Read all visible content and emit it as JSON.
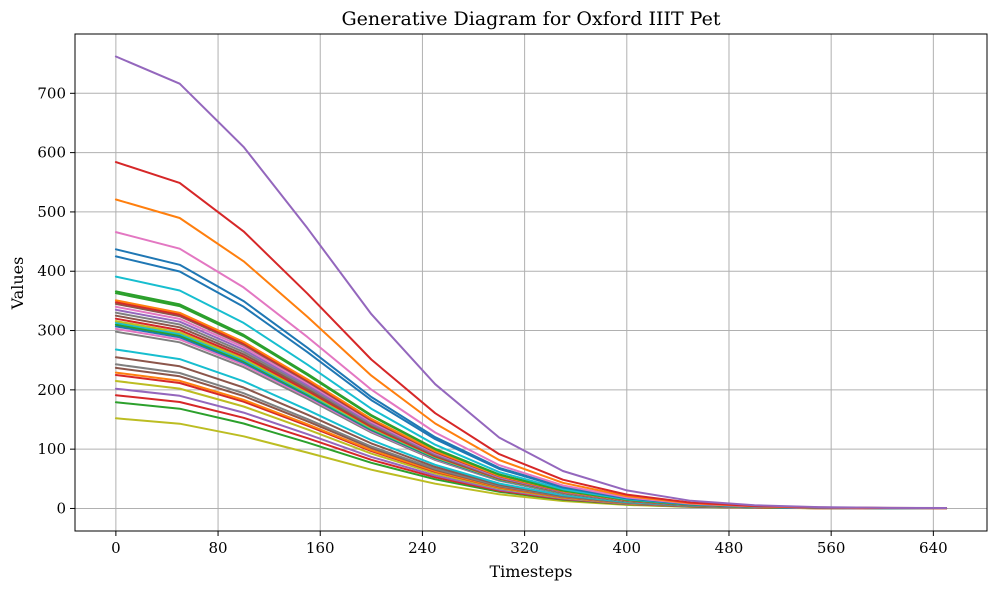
{
  "chart_data": {
    "type": "line",
    "title": "Generative Diagram for Oxford IIIT Pet",
    "xlabel": "Timesteps",
    "ylabel": "Values",
    "xlim": [
      -32,
      682
    ],
    "ylim": [
      -38,
      800
    ],
    "xticks": [
      0,
      80,
      160,
      240,
      320,
      400,
      480,
      560,
      640
    ],
    "yticks": [
      0,
      100,
      200,
      300,
      400,
      500,
      600,
      700
    ],
    "grid": true,
    "x": [
      0,
      50,
      100,
      150,
      200,
      250,
      300,
      350,
      400,
      450,
      500,
      550,
      600,
      650
    ],
    "profile": [
      1,
      0.94,
      0.8,
      0.62,
      0.43,
      0.275,
      0.157,
      0.083,
      0.04,
      0.017,
      0.007,
      0.003,
      0.0015,
      0.001
    ],
    "start_values": [
      762,
      584,
      521,
      466,
      437,
      425,
      391,
      366,
      363,
      351,
      348,
      345,
      340,
      335,
      330,
      325,
      320,
      316,
      313,
      310,
      307,
      303,
      298,
      268,
      255,
      243,
      237,
      229,
      225,
      215,
      202,
      191,
      179,
      152
    ],
    "series_colors": [
      "#9467bd",
      "#d62728",
      "#ff7f0e",
      "#e377c2",
      "#1f77b4",
      "#1f77b4",
      "#17becf",
      "#2ca02c",
      "#2ca02c",
      "#ff7f0e",
      "#d62728",
      "#8c564b",
      "#e377c2",
      "#9467bd",
      "#7f7f7f",
      "#8c564b",
      "#d62728",
      "#bcbd22",
      "#17becf",
      "#2ca02c",
      "#1f77b4",
      "#e377c2",
      "#7f7f7f",
      "#17becf",
      "#8c564b",
      "#7f7f7f",
      "#8c564b",
      "#ff7f0e",
      "#d62728",
      "#bcbd22",
      "#9467bd",
      "#d62728",
      "#2ca02c",
      "#bcbd22"
    ]
  }
}
